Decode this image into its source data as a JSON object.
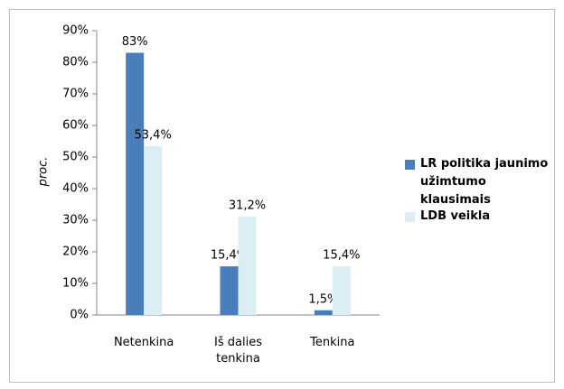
{
  "chart_data": {
    "type": "bar",
    "y_label": "proc.",
    "categories": [
      "Netenkina",
      "Iš dalies tenkina",
      "Tenkina"
    ],
    "series": [
      {
        "name": "LR politika jaunimo užimtumo klausimais",
        "color": "#4a7ebb",
        "values": [
          83,
          15.4,
          1.5
        ],
        "value_labels": [
          "83%",
          "15,4%",
          "1,5%"
        ]
      },
      {
        "name": "LDB veikla",
        "color": "#dbeef4",
        "values": [
          53.4,
          31.2,
          15.4
        ],
        "value_labels": [
          "53,4%",
          "31,2%",
          "15,4%"
        ]
      }
    ],
    "ylim": [
      0,
      90
    ],
    "yticks": [
      {
        "value": 0,
        "label": "0%"
      },
      {
        "value": 10,
        "label": "10%"
      },
      {
        "value": 20,
        "label": "20%"
      },
      {
        "value": 30,
        "label": "30%"
      },
      {
        "value": 40,
        "label": "40%"
      },
      {
        "value": 50,
        "label": "50%"
      },
      {
        "value": 60,
        "label": "60%"
      },
      {
        "value": 70,
        "label": "70%"
      },
      {
        "value": 80,
        "label": "80%"
      },
      {
        "value": 90,
        "label": "90%"
      }
    ],
    "grid": false
  }
}
